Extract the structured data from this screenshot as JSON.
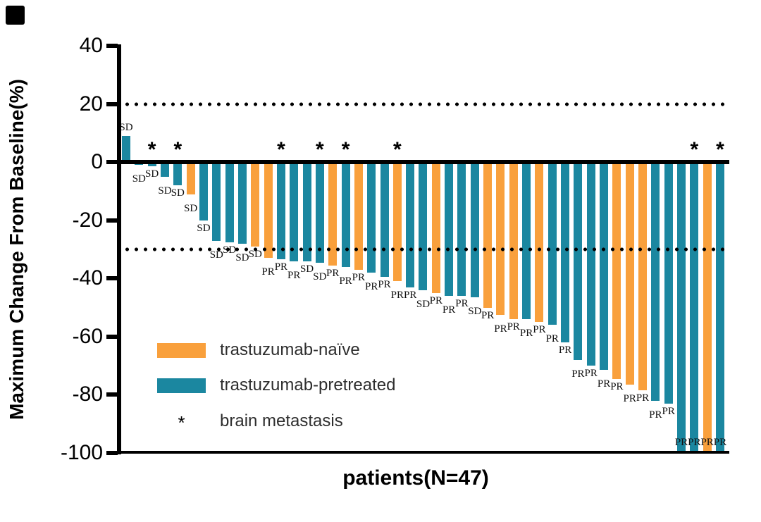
{
  "chart_data": {
    "type": "bar",
    "subtype": "waterfall",
    "title": "",
    "xlabel": "patients(N=47)",
    "ylabel": "Maximum Change From Baseline(%)",
    "ylim": [
      -100,
      40
    ],
    "yticks": [
      40,
      20,
      0,
      -20,
      -40,
      -60,
      -80,
      -100
    ],
    "grid": false,
    "reference_lines": [
      {
        "y": 20,
        "style": "dotted"
      },
      {
        "y": -30,
        "style": "dotted"
      }
    ],
    "legend": {
      "position": "inside-lower-left",
      "items": [
        {
          "label": "trastuzumab-naïve",
          "marker": "swatch",
          "color": "#F9A03C"
        },
        {
          "label": "trastuzumab-pretreated",
          "marker": "swatch",
          "color": "#1B87A0"
        },
        {
          "label": "brain metastasis",
          "marker": "asterisk",
          "symbol": "*"
        }
      ]
    },
    "series_colors": {
      "naive": "#F9A03C",
      "pretreated": "#1B87A0"
    },
    "annotation_symbols": {
      "brain_metastasis": "*"
    },
    "patients": [
      {
        "n": 1,
        "value": 9,
        "group": "pretreated",
        "response": "SD",
        "brain_metastasis": false
      },
      {
        "n": 2,
        "value": -1,
        "group": "pretreated",
        "response": "SD",
        "brain_metastasis": false
      },
      {
        "n": 3,
        "value": -1.5,
        "group": "pretreated",
        "response": "SD",
        "brain_metastasis": true
      },
      {
        "n": 4,
        "value": -5,
        "group": "pretreated",
        "response": "SD",
        "brain_metastasis": false
      },
      {
        "n": 5,
        "value": -8,
        "group": "pretreated",
        "response": "SD",
        "brain_metastasis": true
      },
      {
        "n": 6,
        "value": -11,
        "group": "naive",
        "response": "SD",
        "brain_metastasis": false
      },
      {
        "n": 7,
        "value": -20,
        "group": "pretreated",
        "response": "SD",
        "brain_metastasis": false
      },
      {
        "n": 8,
        "value": -27,
        "group": "pretreated",
        "response": "SD",
        "brain_metastasis": false
      },
      {
        "n": 9,
        "value": -27.5,
        "group": "pretreated",
        "response": "SD",
        "brain_metastasis": false
      },
      {
        "n": 10,
        "value": -28,
        "group": "pretreated",
        "response": "SD",
        "brain_metastasis": false
      },
      {
        "n": 11,
        "value": -29,
        "group": "naive",
        "response": "SD",
        "brain_metastasis": false
      },
      {
        "n": 12,
        "value": -33,
        "group": "naive",
        "response": "PR",
        "brain_metastasis": false
      },
      {
        "n": 13,
        "value": -33.5,
        "group": "pretreated",
        "response": "PR",
        "brain_metastasis": true
      },
      {
        "n": 14,
        "value": -34,
        "group": "pretreated",
        "response": "PR",
        "brain_metastasis": false
      },
      {
        "n": 15,
        "value": -34,
        "group": "pretreated",
        "response": "SD",
        "brain_metastasis": false
      },
      {
        "n": 16,
        "value": -34.5,
        "group": "pretreated",
        "response": "SD",
        "brain_metastasis": true
      },
      {
        "n": 17,
        "value": -35.5,
        "group": "naive",
        "response": "PR",
        "brain_metastasis": false
      },
      {
        "n": 18,
        "value": -36,
        "group": "pretreated",
        "response": "PR",
        "brain_metastasis": true
      },
      {
        "n": 19,
        "value": -37,
        "group": "naive",
        "response": "PR",
        "brain_metastasis": false
      },
      {
        "n": 20,
        "value": -38,
        "group": "pretreated",
        "response": "PR",
        "brain_metastasis": false
      },
      {
        "n": 21,
        "value": -39.5,
        "group": "pretreated",
        "response": "PR",
        "brain_metastasis": false
      },
      {
        "n": 22,
        "value": -41,
        "group": "naive",
        "response": "PR",
        "brain_metastasis": true
      },
      {
        "n": 23,
        "value": -43,
        "group": "pretreated",
        "response": "PR",
        "brain_metastasis": false
      },
      {
        "n": 24,
        "value": -44,
        "group": "pretreated",
        "response": "SD",
        "brain_metastasis": false
      },
      {
        "n": 25,
        "value": -45,
        "group": "naive",
        "response": "PR",
        "brain_metastasis": false
      },
      {
        "n": 26,
        "value": -46,
        "group": "pretreated",
        "response": "PR",
        "brain_metastasis": false
      },
      {
        "n": 27,
        "value": -46,
        "group": "pretreated",
        "response": "PR",
        "brain_metastasis": false
      },
      {
        "n": 28,
        "value": -46.5,
        "group": "pretreated",
        "response": "SD",
        "brain_metastasis": false
      },
      {
        "n": 29,
        "value": -50,
        "group": "naive",
        "response": "PR",
        "brain_metastasis": false
      },
      {
        "n": 30,
        "value": -52.5,
        "group": "naive",
        "response": "PR",
        "brain_metastasis": false
      },
      {
        "n": 31,
        "value": -54,
        "group": "naive",
        "response": "PR",
        "brain_metastasis": false
      },
      {
        "n": 32,
        "value": -54,
        "group": "pretreated",
        "response": "PR",
        "brain_metastasis": false
      },
      {
        "n": 33,
        "value": -55,
        "group": "naive",
        "response": "PR",
        "brain_metastasis": false
      },
      {
        "n": 34,
        "value": -56,
        "group": "pretreated",
        "response": "PR",
        "brain_metastasis": false
      },
      {
        "n": 35,
        "value": -62,
        "group": "pretreated",
        "response": "PR",
        "brain_metastasis": false
      },
      {
        "n": 36,
        "value": -68,
        "group": "pretreated",
        "response": "PR",
        "brain_metastasis": false
      },
      {
        "n": 37,
        "value": -70,
        "group": "pretreated",
        "response": "PR",
        "brain_metastasis": false
      },
      {
        "n": 38,
        "value": -71.5,
        "group": "pretreated",
        "response": "PR",
        "brain_metastasis": false
      },
      {
        "n": 39,
        "value": -74.5,
        "group": "naive",
        "response": "PR",
        "brain_metastasis": false
      },
      {
        "n": 40,
        "value": -76.5,
        "group": "naive",
        "response": "PR",
        "brain_metastasis": false
      },
      {
        "n": 41,
        "value": -78.5,
        "group": "naive",
        "response": "PR",
        "brain_metastasis": false
      },
      {
        "n": 42,
        "value": -82,
        "group": "pretreated",
        "response": "PR",
        "brain_metastasis": false
      },
      {
        "n": 43,
        "value": -83,
        "group": "pretreated",
        "response": "PR",
        "brain_metastasis": false
      },
      {
        "n": 44,
        "value": -100,
        "group": "pretreated",
        "response": "PR",
        "brain_metastasis": false
      },
      {
        "n": 45,
        "value": -100,
        "group": "pretreated",
        "response": "PR",
        "brain_metastasis": true
      },
      {
        "n": 46,
        "value": -100,
        "group": "naive",
        "response": "PR",
        "brain_metastasis": false
      },
      {
        "n": 47,
        "value": -100,
        "group": "pretreated",
        "response": "PR",
        "brain_metastasis": true
      }
    ]
  }
}
